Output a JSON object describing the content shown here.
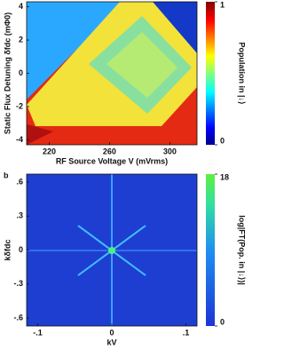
{
  "chart_data": [
    {
      "type": "heatmap",
      "xlabel": "RF Source Voltage V (mVrms)",
      "ylabel": "Static Flux Detuning δfdc (mΦ0)",
      "xlim": [
        205,
        318
      ],
      "xticks": [
        220,
        260,
        300
      ],
      "ylim": [
        -4.3,
        4.3
      ],
      "yticks": [
        4,
        2,
        0,
        -2,
        -4
      ],
      "colorbar_label": "Population in |↓⟩",
      "clim": [
        0,
        1
      ],
      "cticks": [
        1,
        0
      ]
    },
    {
      "type": "heatmap",
      "panel_label": "b",
      "xlabel": "kV",
      "ylabel": "kδfdc",
      "xlim": [
        -0.115,
        0.115
      ],
      "xticks": [
        {
          "value": -0.1,
          "label": "-.1"
        },
        0,
        {
          "value": 0.1,
          "label": ".1"
        }
      ],
      "ylim": [
        -0.67,
        0.67
      ],
      "yticks": [
        {
          "value": 0.6,
          "label": ".6"
        },
        {
          "value": 0.3,
          "label": ".3"
        },
        0,
        {
          "value": -0.3,
          "label": "-.3"
        },
        {
          "value": -0.6,
          "label": "-.6"
        }
      ],
      "colorbar_label": "log|FT(Pop. in |↓⟩)|",
      "clim": [
        0,
        18
      ],
      "cticks": [
        18,
        0
      ]
    }
  ]
}
